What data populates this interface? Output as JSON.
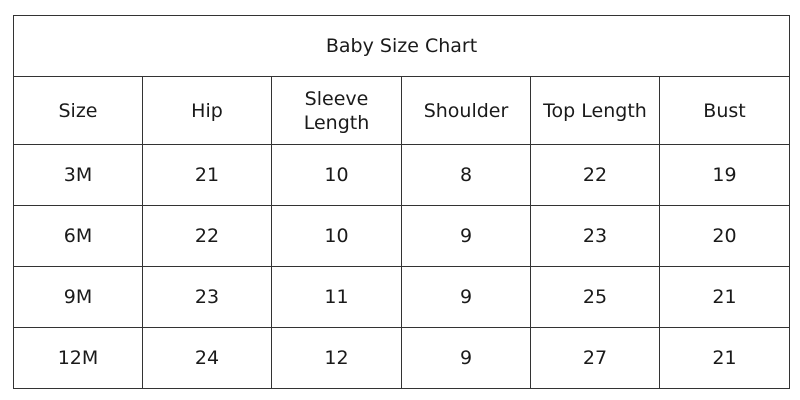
{
  "title": "Baby Size Chart",
  "columns": [
    "Size",
    "Hip",
    "Sleeve Length",
    "Shoulder",
    "Top Length",
    "Bust"
  ],
  "rows": [
    [
      "3M",
      "21",
      "10",
      "8",
      "22",
      "19"
    ],
    [
      "6M",
      "22",
      "10",
      "9",
      "23",
      "20"
    ],
    [
      "9M",
      "23",
      "11",
      "9",
      "25",
      "21"
    ],
    [
      "12M",
      "24",
      "12",
      "9",
      "27",
      "21"
    ]
  ]
}
